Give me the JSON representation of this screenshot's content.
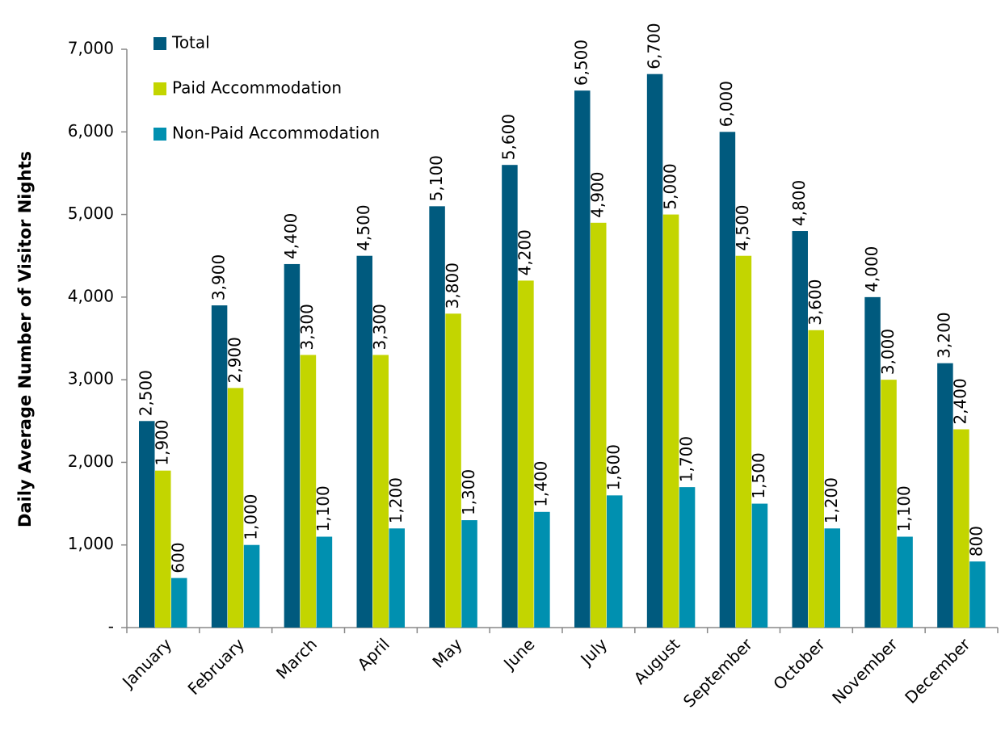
{
  "chart_data": {
    "type": "bar",
    "y_label": "Daily Average Number of Visitor Nights",
    "categories": [
      "January",
      "February",
      "March",
      "April",
      "May",
      "June",
      "July",
      "August",
      "September",
      "October",
      "November",
      "December"
    ],
    "series": [
      {
        "name": "Total",
        "color": "#005a7e",
        "values": [
          2500,
          3900,
          4400,
          4500,
          5100,
          5600,
          6500,
          6700,
          6000,
          4800,
          4000,
          3200
        ],
        "value_labels": [
          "2,500",
          "3,900",
          "4,400",
          "4,500",
          "5,100",
          "5,600",
          "6,500",
          "6,700",
          "6,000",
          "4,800",
          "4,000",
          "3,200"
        ]
      },
      {
        "name": "Paid Accommodation",
        "color": "#c3d500",
        "values": [
          1900,
          2900,
          3300,
          3300,
          3800,
          4200,
          4900,
          5000,
          4500,
          3600,
          3000,
          2400
        ],
        "value_labels": [
          "1,900",
          "2,900",
          "3,300",
          "3,300",
          "3,800",
          "4,200",
          "4,900",
          "5,000",
          "4,500",
          "3,600",
          "3,000",
          "2,400"
        ]
      },
      {
        "name": "Non-Paid Accommodation",
        "color": "#0090b0",
        "values": [
          600,
          1000,
          1100,
          1200,
          1300,
          1400,
          1600,
          1700,
          1500,
          1200,
          1100,
          800
        ],
        "value_labels": [
          "600",
          "1,000",
          "1,100",
          "1,200",
          "1,300",
          "1,400",
          "1,600",
          "1,700",
          "1,500",
          "1,200",
          "1,100",
          "800"
        ]
      }
    ],
    "ylim": [
      0,
      7000
    ],
    "yticks": [
      {
        "value": 0,
        "label": "-"
      },
      {
        "value": 1000,
        "label": "1,000"
      },
      {
        "value": 2000,
        "label": "2,000"
      },
      {
        "value": 3000,
        "label": "3,000"
      },
      {
        "value": 4000,
        "label": "4,000"
      },
      {
        "value": 5000,
        "label": "5,000"
      },
      {
        "value": 6000,
        "label": "6,000"
      },
      {
        "value": 7000,
        "label": "7,000"
      }
    ],
    "legend": "upper left"
  }
}
